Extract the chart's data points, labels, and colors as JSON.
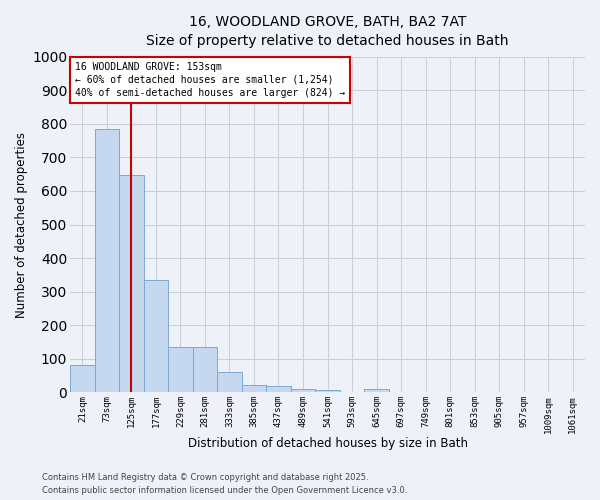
{
  "title_line1": "16, WOODLAND GROVE, BATH, BA2 7AT",
  "title_line2": "Size of property relative to detached houses in Bath",
  "xlabel": "Distribution of detached houses by size in Bath",
  "ylabel": "Number of detached properties",
  "bar_color": "#c5d8f0",
  "bar_edge_color": "#7aaad0",
  "background_color": "#eef2f8",
  "grid_color": "#d8dfe8",
  "categories": [
    "21sqm",
    "73sqm",
    "125sqm",
    "177sqm",
    "229sqm",
    "281sqm",
    "333sqm",
    "385sqm",
    "437sqm",
    "489sqm",
    "541sqm",
    "593sqm",
    "645sqm",
    "697sqm",
    "749sqm",
    "801sqm",
    "853sqm",
    "905sqm",
    "957sqm",
    "1009sqm",
    "1061sqm"
  ],
  "values": [
    83,
    783,
    648,
    335,
    135,
    135,
    60,
    22,
    18,
    10,
    8,
    0,
    10,
    0,
    0,
    0,
    0,
    0,
    0,
    0,
    0
  ],
  "ylim": [
    0,
    1000
  ],
  "yticks": [
    0,
    100,
    200,
    300,
    400,
    500,
    600,
    700,
    800,
    900,
    1000
  ],
  "property_line_x": 2.0,
  "annotation_text": "16 WOODLAND GROVE: 153sqm\n← 60% of detached houses are smaller (1,254)\n40% of semi-detached houses are larger (824) →",
  "annotation_box_color": "#ffffff",
  "annotation_box_edge": "#cc0000",
  "property_line_color": "#cc0000",
  "footer_line1": "Contains HM Land Registry data © Crown copyright and database right 2025.",
  "footer_line2": "Contains public sector information licensed under the Open Government Licence v3.0."
}
